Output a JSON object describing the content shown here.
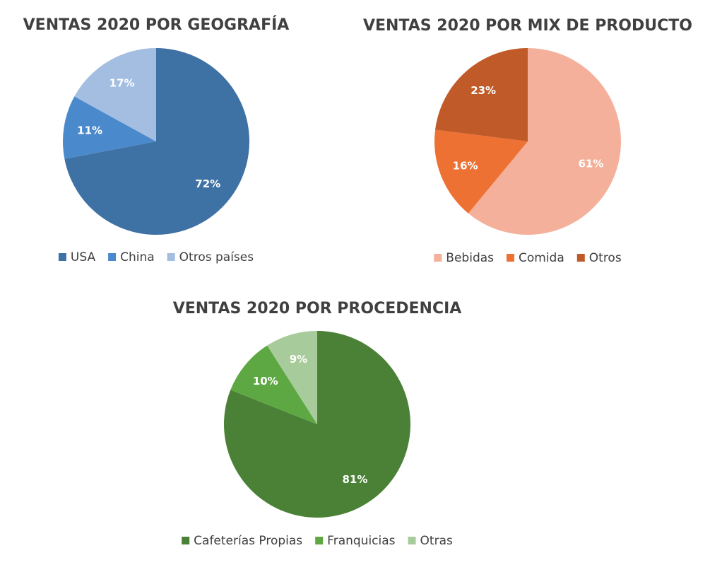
{
  "chart_data": [
    {
      "type": "pie",
      "title": "VENTAS 2020 POR GEOGRAFÍA",
      "categories": [
        "USA",
        "China",
        "Otros países"
      ],
      "values": [
        72,
        11,
        17
      ],
      "value_labels": [
        "72%",
        "11%",
        "17%"
      ],
      "colors": [
        "#3e71a4",
        "#4a89cb",
        "#a3bee0"
      ]
    },
    {
      "type": "pie",
      "title": "VENTAS 2020 POR MIX DE PRODUCTO",
      "categories": [
        "Bebidas",
        "Comida",
        "Otros"
      ],
      "values": [
        61,
        16,
        23
      ],
      "value_labels": [
        "61%",
        "16%",
        "23%"
      ],
      "colors": [
        "#f4b09a",
        "#ee7134",
        "#c05a28"
      ]
    },
    {
      "type": "pie",
      "title": "VENTAS 2020 POR PROCEDENCIA",
      "categories": [
        "Cafeterías Propias",
        "Franquicias",
        "Otras"
      ],
      "values": [
        81,
        10,
        9
      ],
      "value_labels": [
        "81%",
        "10%",
        "9%"
      ],
      "colors": [
        "#4b8136",
        "#5ea843",
        "#a8cb9b"
      ]
    }
  ]
}
